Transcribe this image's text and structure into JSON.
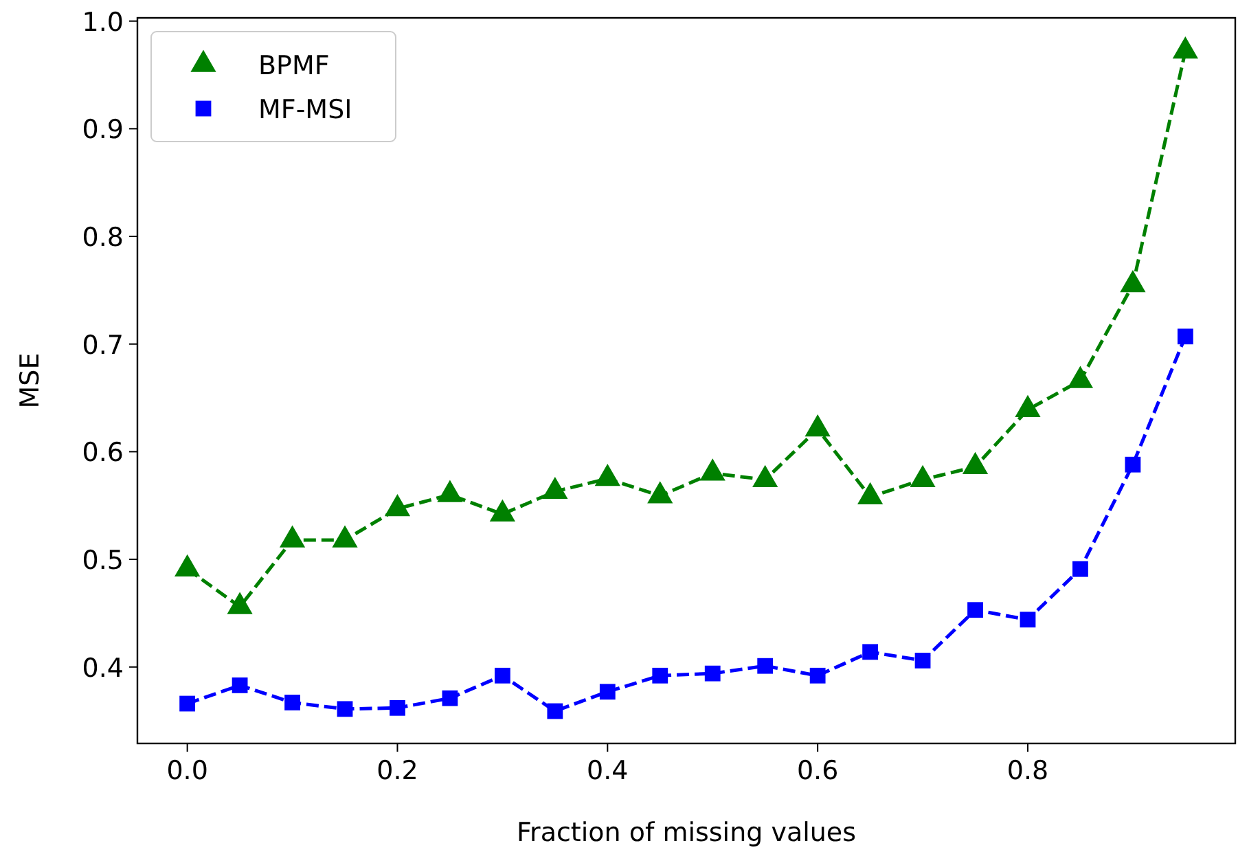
{
  "chart_data": {
    "type": "line",
    "xlabel": "Fraction of missing values",
    "ylabel": "MSE",
    "x": [
      0,
      0.05,
      0.1,
      0.15,
      0.2,
      0.25,
      0.3,
      0.35,
      0.4,
      0.45,
      0.5,
      0.55,
      0.6,
      0.65,
      0.7,
      0.75,
      0.8,
      0.85,
      0.9,
      0.95
    ],
    "series": [
      {
        "name": "BPMF",
        "color": "#008000",
        "marker": "triangle",
        "values": [
          0.491,
          0.456,
          0.518,
          0.518,
          0.547,
          0.56,
          0.542,
          0.563,
          0.575,
          0.559,
          0.58,
          0.574,
          0.621,
          0.558,
          0.574,
          0.586,
          0.639,
          0.666,
          0.755,
          0.972
        ]
      },
      {
        "name": "MF-MSI",
        "color": "#0000ff",
        "marker": "square",
        "values": [
          0.366,
          0.383,
          0.367,
          0.361,
          0.362,
          0.371,
          0.392,
          0.359,
          0.377,
          0.392,
          0.394,
          0.401,
          0.392,
          0.414,
          0.406,
          0.453,
          0.444,
          0.491,
          0.588,
          0.707
        ]
      }
    ],
    "xlim": [
      -0.0475,
      0.9975
    ],
    "ylim": [
      0.329,
      1.003
    ],
    "xticks": [
      {
        "value": 0,
        "label": "0.0"
      },
      0.2,
      0.4,
      0.6,
      0.8
    ],
    "yticks": [
      0.4,
      0.5,
      0.6,
      0.7,
      0.8,
      0.9,
      {
        "value": 1,
        "label": "1.0"
      }
    ],
    "legend": "top left",
    "line_style": "dashed",
    "grid": false
  }
}
